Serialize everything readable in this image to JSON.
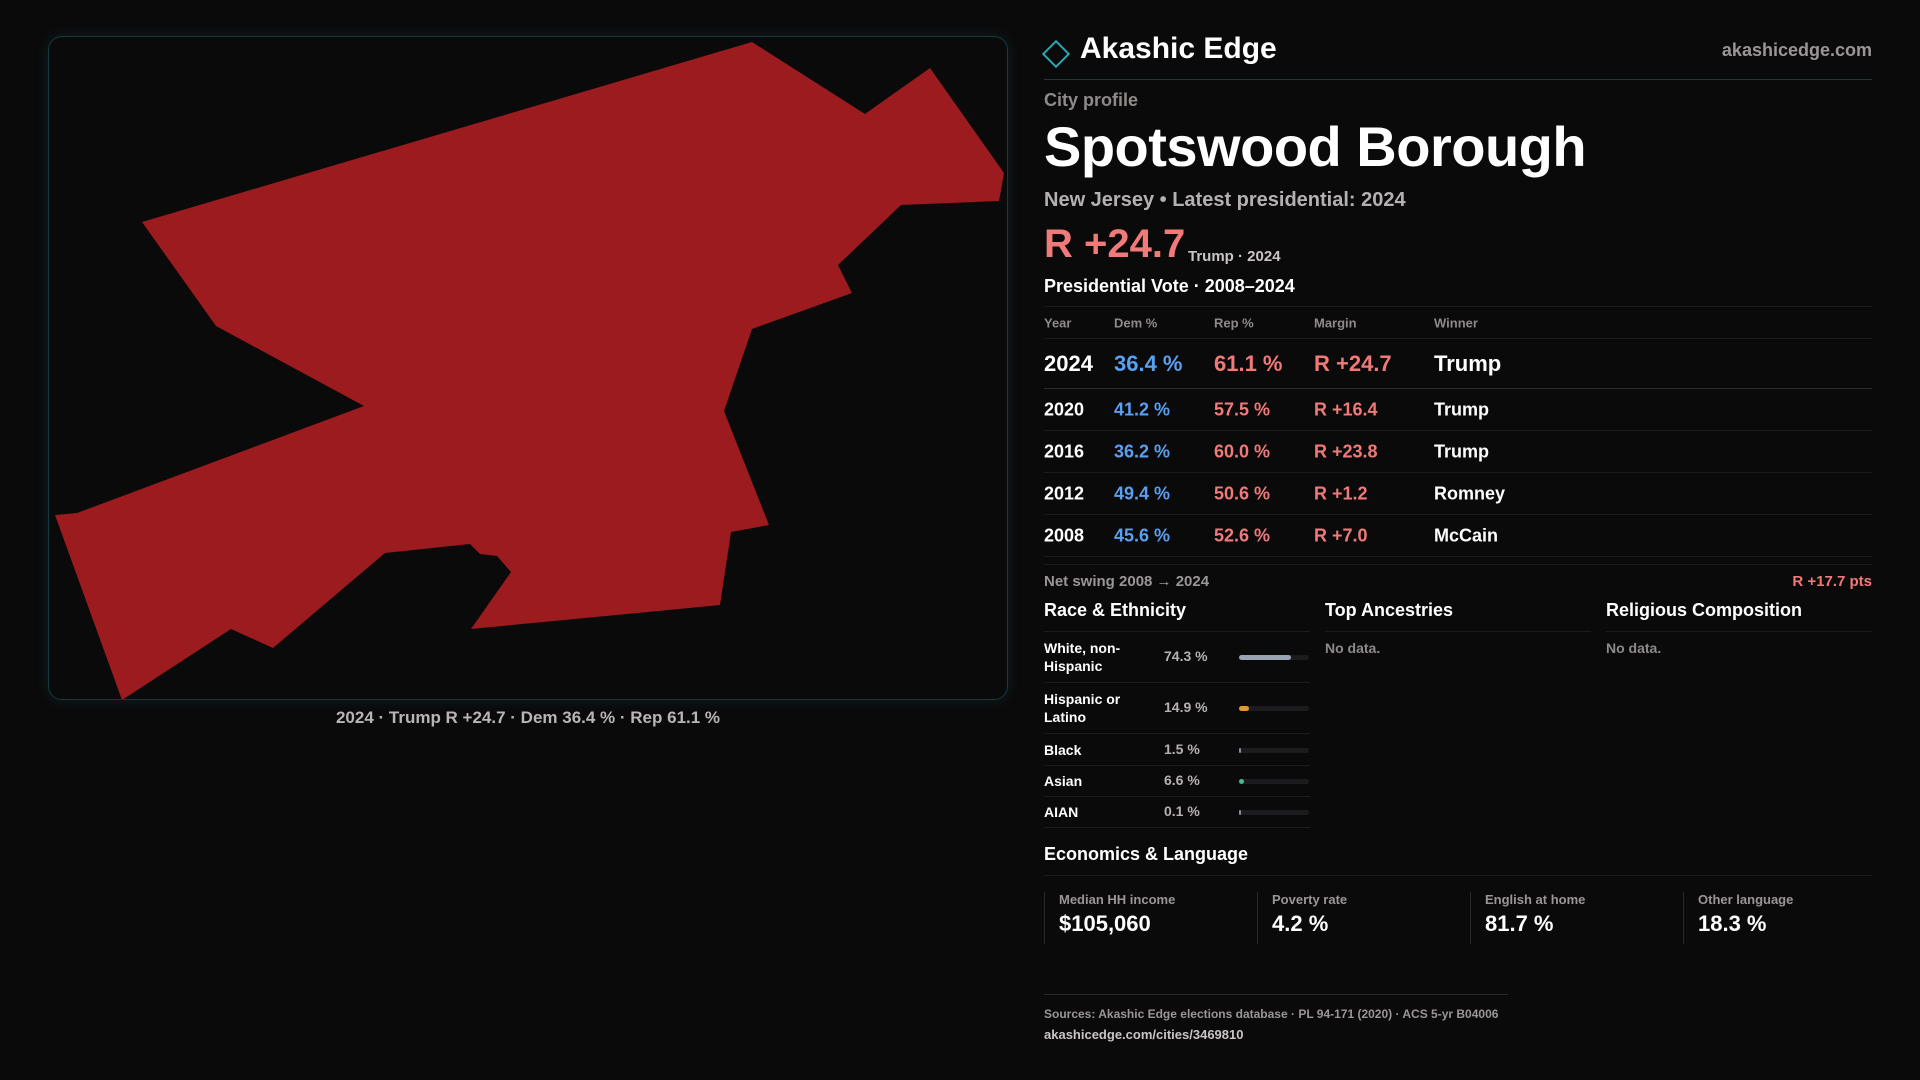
{
  "brand": {
    "name": "Akashic Edge",
    "url": "akashicedge.com",
    "accent": "#2aa7b3"
  },
  "map": {
    "caption": "2024 · Trump R +24.7 · Dem 36.4 % · Rep 61.1 %",
    "fill_color": "#9b1b1f"
  },
  "header": {
    "eyebrow": "City profile",
    "title": "Spotswood Borough",
    "subtitle": "New Jersey • Latest presidential: 2024",
    "margin": "R +24.7",
    "margin_note": "Trump · 2024"
  },
  "vote": {
    "title": "Presidential Vote · 2008–2024",
    "columns": {
      "year": "Year",
      "dem": "Dem %",
      "rep": "Rep %",
      "margin": "Margin",
      "winner": "Winner"
    },
    "rows": [
      {
        "year": "2024",
        "dem": "36.4 %",
        "rep": "61.1 %",
        "margin": "R +24.7",
        "winner": "Trump"
      },
      {
        "year": "2020",
        "dem": "41.2 %",
        "rep": "57.5 %",
        "margin": "R +16.4",
        "winner": "Trump"
      },
      {
        "year": "2016",
        "dem": "36.2 %",
        "rep": "60.0 %",
        "margin": "R +23.8",
        "winner": "Trump"
      },
      {
        "year": "2012",
        "dem": "49.4 %",
        "rep": "50.6 %",
        "margin": "R +1.2",
        "winner": "Romney"
      },
      {
        "year": "2008",
        "dem": "45.6 %",
        "rep": "52.6 %",
        "margin": "R +7.0",
        "winner": "McCain"
      }
    ],
    "swing_label": "Net swing 2008 → 2024",
    "swing_value": "R +17.7 pts"
  },
  "race": {
    "title": "Race & Ethnicity",
    "rows": [
      {
        "label": "White, non-Hispanic",
        "pct": "74.3 %",
        "value": 74.3,
        "color": "#9aa3b2"
      },
      {
        "label": "Hispanic or Latino",
        "pct": "14.9 %",
        "value": 14.9,
        "color": "#e39a2a"
      },
      {
        "label": "Black",
        "pct": "1.5 %",
        "value": 1.5,
        "color": "#8a8fa0"
      },
      {
        "label": "Asian",
        "pct": "6.6 %",
        "value": 6.6,
        "color": "#3fbf8f"
      },
      {
        "label": "AIAN",
        "pct": "0.1 %",
        "value": 0.1,
        "color": "#8a8fa0"
      }
    ]
  },
  "ancestries": {
    "title": "Top Ancestries",
    "empty": "No data."
  },
  "religion": {
    "title": "Religious Composition",
    "empty": "No data."
  },
  "economics": {
    "title": "Economics & Language",
    "cards": [
      {
        "label": "Median HH income",
        "value": "$105,060"
      },
      {
        "label": "Poverty rate",
        "value": "4.2 %"
      },
      {
        "label": "English at home",
        "value": "81.7 %"
      },
      {
        "label": "Other language",
        "value": "18.3 %"
      }
    ]
  },
  "sources": {
    "line": "Sources: Akashic Edge elections database · PL 94-171 (2020) · ACS 5-yr B04006",
    "url": "akashicedge.com/cities/3469810"
  }
}
